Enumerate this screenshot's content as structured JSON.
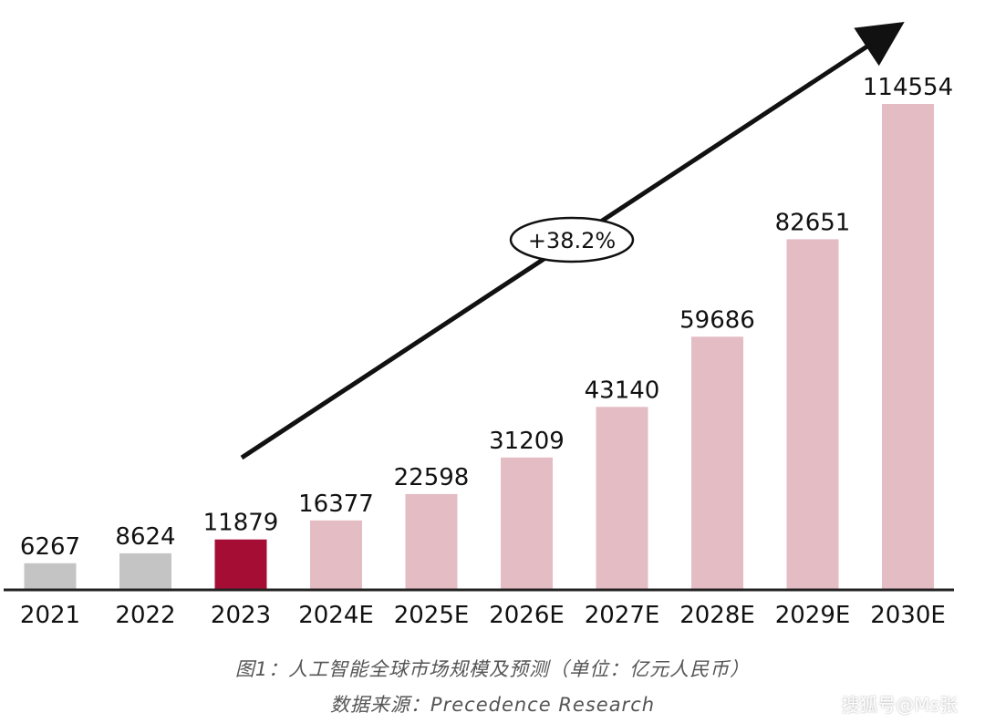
{
  "chart_data": {
    "type": "bar",
    "categories": [
      "2021",
      "2022",
      "2023",
      "2024E",
      "2025E",
      "2026E",
      "2027E",
      "2028E",
      "2029E",
      "2030E"
    ],
    "values": [
      6267,
      8624,
      11879,
      16377,
      22598,
      31209,
      43140,
      59686,
      82651,
      114554
    ],
    "bar_colors": [
      "#c4c4c4",
      "#c4c4c4",
      "#a50d34",
      "#e4bcc4",
      "#e4bcc4",
      "#e4bcc4",
      "#e4bcc4",
      "#e4bcc4",
      "#e4bcc4",
      "#e4bcc4"
    ],
    "ylim": [
      0,
      114554
    ],
    "grid": false,
    "annotations": [
      {
        "text": "+38.2%",
        "type": "trend-arrow"
      }
    ]
  },
  "caption": {
    "title": "图1：人工智能全球市场规模及预测（单位：亿元人民币）",
    "source": "数据来源：Precedence Research"
  },
  "watermark": "搜狐号@Ms张"
}
